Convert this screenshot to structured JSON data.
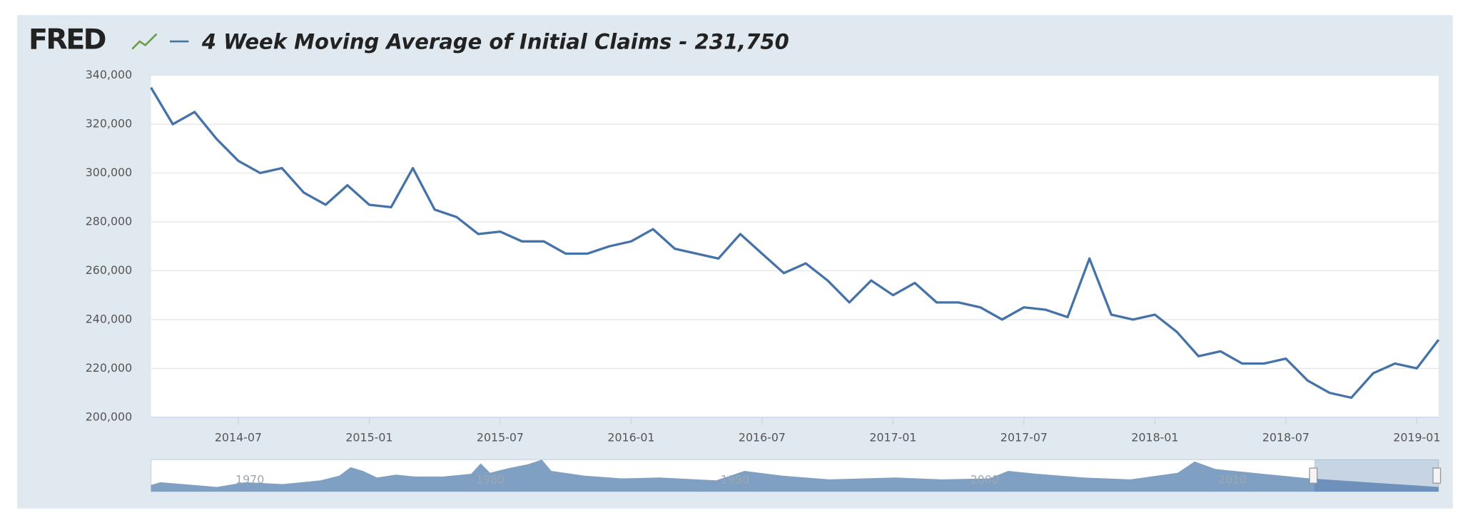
{
  "brand": "FRED",
  "chart_data": {
    "type": "line",
    "title": "4 Week Moving Average of Initial Claims - 231,750",
    "x": [
      "2014-03",
      "2014-04",
      "2014-05",
      "2014-06",
      "2014-07",
      "2014-08",
      "2014-09",
      "2014-10",
      "2014-11",
      "2014-12",
      "2015-01",
      "2015-02",
      "2015-03",
      "2015-04",
      "2015-05",
      "2015-06",
      "2015-07",
      "2015-08",
      "2015-09",
      "2015-10",
      "2015-11",
      "2015-12",
      "2016-01",
      "2016-02",
      "2016-03",
      "2016-04",
      "2016-05",
      "2016-06",
      "2016-07",
      "2016-08",
      "2016-09",
      "2016-10",
      "2016-11",
      "2016-12",
      "2017-01",
      "2017-02",
      "2017-03",
      "2017-04",
      "2017-05",
      "2017-06",
      "2017-07",
      "2017-08",
      "2017-09",
      "2017-10",
      "2017-11",
      "2017-12",
      "2018-01",
      "2018-02",
      "2018-03",
      "2018-04",
      "2018-05",
      "2018-06",
      "2018-07",
      "2018-08",
      "2018-09",
      "2018-10",
      "2018-11",
      "2018-12",
      "2019-01",
      "2019-02"
    ],
    "series": [
      {
        "name": "4 Week Moving Average of Initial Claims",
        "color": "#4572a7",
        "values": [
          335000,
          320000,
          325000,
          314000,
          305000,
          300000,
          302000,
          292000,
          287000,
          295000,
          287000,
          286000,
          302000,
          285000,
          282000,
          275000,
          276000,
          272000,
          272000,
          267000,
          267000,
          270000,
          272000,
          277000,
          269000,
          267000,
          265000,
          275000,
          267000,
          259000,
          263000,
          256000,
          247000,
          256000,
          250000,
          255000,
          247000,
          247000,
          245000,
          240000,
          245000,
          244000,
          241000,
          265000,
          242000,
          240000,
          242000,
          235000,
          225000,
          227000,
          222000,
          222000,
          224000,
          215000,
          210000,
          208000,
          218000,
          222000,
          220000,
          231750
        ]
      }
    ],
    "xlim": [
      "2014-03",
      "2019-02"
    ],
    "xticks": [
      "2014-07",
      "2015-01",
      "2015-07",
      "2016-01",
      "2016-07",
      "2017-01",
      "2017-07",
      "2018-01",
      "2018-07",
      "2019-01"
    ],
    "ylim": [
      200000,
      340000
    ],
    "yticks": [
      {
        "value": 200000,
        "label": "200,000"
      },
      {
        "value": 220000,
        "label": "220,000"
      },
      {
        "value": 240000,
        "label": "240,000"
      },
      {
        "value": 260000,
        "label": "260,000"
      },
      {
        "value": 280000,
        "label": "280,000"
      },
      {
        "value": 300000,
        "label": "300,000"
      },
      {
        "value": 320000,
        "label": "320,000"
      },
      {
        "value": 340000,
        "label": "340,000"
      }
    ],
    "grid": true
  },
  "navigator": {
    "labels": [
      "1970",
      "1980",
      "1990",
      "2000",
      "2010"
    ]
  }
}
